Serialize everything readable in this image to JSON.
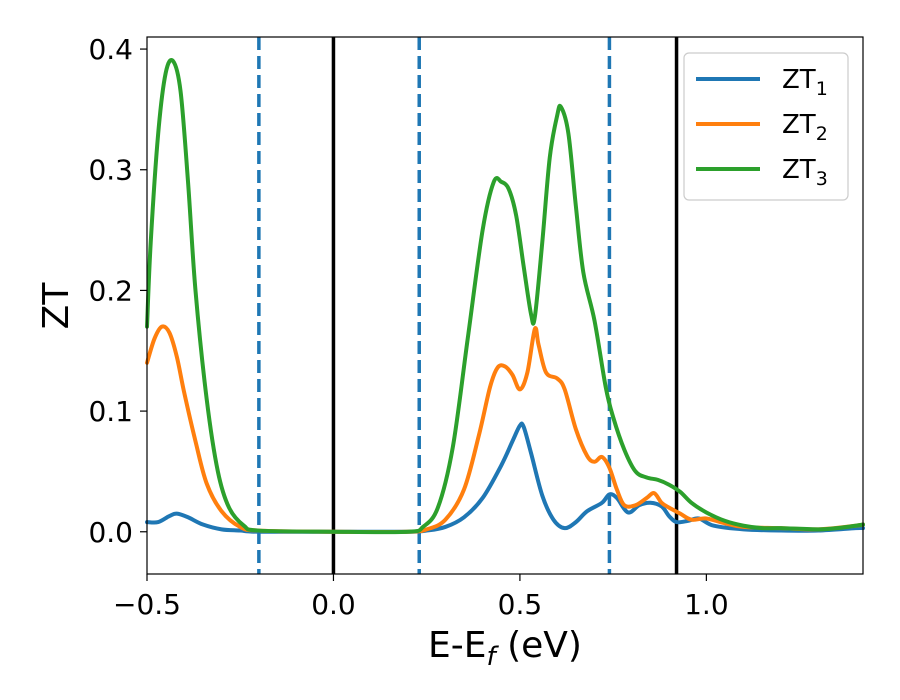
{
  "chart_data": {
    "type": "line",
    "xlabel": "E-E",
    "xlabel_sub": "f",
    "xlabel_unit": " (eV)",
    "ylabel": "ZT",
    "xlim": [
      -0.5,
      1.42
    ],
    "ylim": [
      -0.035,
      0.41
    ],
    "x_ticks": [
      {
        "value": -0.5,
        "label": "−0.5"
      },
      {
        "value": 0.0,
        "label": "0.0"
      },
      {
        "value": 0.5,
        "label": "0.5"
      },
      {
        "value": 1.0,
        "label": "1.0"
      }
    ],
    "y_ticks": [
      {
        "value": 0.0,
        "label": "0.0"
      },
      {
        "value": 0.1,
        "label": "0.1"
      },
      {
        "value": 0.2,
        "label": "0.2"
      },
      {
        "value": 0.3,
        "label": "0.3"
      },
      {
        "value": 0.4,
        "label": "0.4"
      }
    ],
    "vertical_lines": [
      {
        "x": -0.2,
        "style": "dashed",
        "color": "#1f77b4"
      },
      {
        "x": 0.0,
        "style": "solid",
        "color": "#000000"
      },
      {
        "x": 0.23,
        "style": "dashed",
        "color": "#1f77b4"
      },
      {
        "x": 0.74,
        "style": "dashed",
        "color": "#1f77b4"
      },
      {
        "x": 0.92,
        "style": "solid",
        "color": "#000000"
      }
    ],
    "legend_position": "top-right",
    "grid": false,
    "series": [
      {
        "name": "ZT",
        "name_sub": "1",
        "color": "#1f77b4",
        "points": [
          [
            -0.5,
            0.008
          ],
          [
            -0.47,
            0.008
          ],
          [
            -0.44,
            0.013
          ],
          [
            -0.42,
            0.015
          ],
          [
            -0.39,
            0.012
          ],
          [
            -0.35,
            0.006
          ],
          [
            -0.3,
            0.002
          ],
          [
            -0.25,
            0.001
          ],
          [
            -0.2,
            0.0
          ],
          [
            0.0,
            0.0
          ],
          [
            0.2,
            0.0
          ],
          [
            0.25,
            0.001
          ],
          [
            0.3,
            0.004
          ],
          [
            0.35,
            0.012
          ],
          [
            0.4,
            0.028
          ],
          [
            0.45,
            0.055
          ],
          [
            0.48,
            0.075
          ],
          [
            0.5,
            0.088
          ],
          [
            0.51,
            0.087
          ],
          [
            0.53,
            0.065
          ],
          [
            0.56,
            0.03
          ],
          [
            0.59,
            0.01
          ],
          [
            0.62,
            0.003
          ],
          [
            0.65,
            0.008
          ],
          [
            0.68,
            0.017
          ],
          [
            0.72,
            0.024
          ],
          [
            0.74,
            0.031
          ],
          [
            0.76,
            0.028
          ],
          [
            0.79,
            0.016
          ],
          [
            0.82,
            0.022
          ],
          [
            0.85,
            0.024
          ],
          [
            0.88,
            0.021
          ],
          [
            0.9,
            0.013
          ],
          [
            0.92,
            0.008
          ],
          [
            0.95,
            0.009
          ],
          [
            0.98,
            0.011
          ],
          [
            1.02,
            0.005
          ],
          [
            1.1,
            0.002
          ],
          [
            1.2,
            0.001
          ],
          [
            1.3,
            0.001
          ],
          [
            1.4,
            0.003
          ],
          [
            1.42,
            0.003
          ]
        ]
      },
      {
        "name": "ZT",
        "name_sub": "2",
        "color": "#ff7f0e",
        "points": [
          [
            -0.5,
            0.14
          ],
          [
            -0.48,
            0.16
          ],
          [
            -0.46,
            0.17
          ],
          [
            -0.44,
            0.165
          ],
          [
            -0.42,
            0.145
          ],
          [
            -0.4,
            0.115
          ],
          [
            -0.37,
            0.075
          ],
          [
            -0.34,
            0.04
          ],
          [
            -0.3,
            0.017
          ],
          [
            -0.25,
            0.004
          ],
          [
            -0.2,
            0.001
          ],
          [
            0.0,
            0.0
          ],
          [
            0.2,
            0.0
          ],
          [
            0.25,
            0.002
          ],
          [
            0.3,
            0.01
          ],
          [
            0.35,
            0.035
          ],
          [
            0.39,
            0.08
          ],
          [
            0.42,
            0.12
          ],
          [
            0.44,
            0.136
          ],
          [
            0.46,
            0.137
          ],
          [
            0.48,
            0.13
          ],
          [
            0.5,
            0.118
          ],
          [
            0.52,
            0.132
          ],
          [
            0.54,
            0.168
          ],
          [
            0.55,
            0.155
          ],
          [
            0.57,
            0.132
          ],
          [
            0.6,
            0.127
          ],
          [
            0.62,
            0.118
          ],
          [
            0.65,
            0.085
          ],
          [
            0.68,
            0.063
          ],
          [
            0.7,
            0.058
          ],
          [
            0.72,
            0.062
          ],
          [
            0.74,
            0.053
          ],
          [
            0.76,
            0.035
          ],
          [
            0.78,
            0.022
          ],
          [
            0.81,
            0.022
          ],
          [
            0.84,
            0.028
          ],
          [
            0.86,
            0.032
          ],
          [
            0.88,
            0.024
          ],
          [
            0.9,
            0.02
          ],
          [
            0.93,
            0.015
          ],
          [
            0.96,
            0.01
          ],
          [
            1.0,
            0.011
          ],
          [
            1.05,
            0.007
          ],
          [
            1.1,
            0.004
          ],
          [
            1.2,
            0.003
          ],
          [
            1.3,
            0.002
          ],
          [
            1.4,
            0.005
          ],
          [
            1.42,
            0.006
          ]
        ]
      },
      {
        "name": "ZT",
        "name_sub": "3",
        "color": "#2ca02c",
        "points": [
          [
            -0.5,
            0.17
          ],
          [
            -0.49,
            0.24
          ],
          [
            -0.47,
            0.33
          ],
          [
            -0.45,
            0.38
          ],
          [
            -0.43,
            0.39
          ],
          [
            -0.41,
            0.365
          ],
          [
            -0.39,
            0.29
          ],
          [
            -0.37,
            0.2
          ],
          [
            -0.34,
            0.11
          ],
          [
            -0.31,
            0.05
          ],
          [
            -0.28,
            0.02
          ],
          [
            -0.24,
            0.005
          ],
          [
            -0.2,
            0.001
          ],
          [
            0.0,
            0.0
          ],
          [
            0.2,
            0.0
          ],
          [
            0.24,
            0.004
          ],
          [
            0.28,
            0.02
          ],
          [
            0.32,
            0.07
          ],
          [
            0.36,
            0.16
          ],
          [
            0.4,
            0.25
          ],
          [
            0.43,
            0.29
          ],
          [
            0.45,
            0.29
          ],
          [
            0.47,
            0.284
          ],
          [
            0.49,
            0.262
          ],
          [
            0.51,
            0.22
          ],
          [
            0.53,
            0.18
          ],
          [
            0.54,
            0.178
          ],
          [
            0.56,
            0.24
          ],
          [
            0.58,
            0.31
          ],
          [
            0.6,
            0.345
          ],
          [
            0.61,
            0.352
          ],
          [
            0.63,
            0.33
          ],
          [
            0.65,
            0.27
          ],
          [
            0.67,
            0.215
          ],
          [
            0.7,
            0.175
          ],
          [
            0.73,
            0.12
          ],
          [
            0.75,
            0.095
          ],
          [
            0.78,
            0.068
          ],
          [
            0.81,
            0.05
          ],
          [
            0.84,
            0.045
          ],
          [
            0.87,
            0.043
          ],
          [
            0.9,
            0.039
          ],
          [
            0.93,
            0.033
          ],
          [
            0.96,
            0.024
          ],
          [
            1.0,
            0.016
          ],
          [
            1.05,
            0.009
          ],
          [
            1.1,
            0.005
          ],
          [
            1.15,
            0.003
          ],
          [
            1.2,
            0.003
          ],
          [
            1.3,
            0.002
          ],
          [
            1.35,
            0.003
          ],
          [
            1.4,
            0.005
          ],
          [
            1.42,
            0.006
          ]
        ]
      }
    ]
  }
}
